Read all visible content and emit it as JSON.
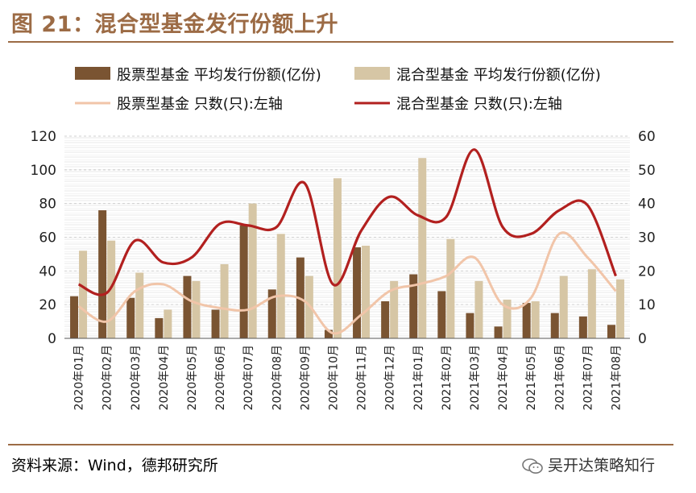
{
  "title": "图 21：混合型基金发行份额上升",
  "source": "资料来源：Wind，德邦研究所",
  "brand": "吴开达策略知行",
  "colors": {
    "stock_bar": "#7a5432",
    "mixed_bar": "#d6c6a5",
    "stock_line": "#f1c5a9",
    "mixed_line": "#b2201f",
    "accent": "#9c6b45"
  },
  "chart_data": {
    "type": "bar+line",
    "grid": true,
    "legend_position": "top",
    "categories": [
      "2020年01月",
      "2020年02月",
      "2020年03月",
      "2020年04月",
      "2020年05月",
      "2020年06月",
      "2020年07月",
      "2020年08月",
      "2020年09月",
      "2020年10月",
      "2020年11月",
      "2020年12月",
      "2021年01月",
      "2021年02月",
      "2021年03月",
      "2021年04月",
      "2021年05月",
      "2021年06月",
      "2021年07月",
      "2021年08月"
    ],
    "y_left": {
      "min": 0,
      "max": 120,
      "ticks": [
        0,
        20,
        40,
        60,
        80,
        100,
        120
      ]
    },
    "y_right": {
      "min": 0,
      "max": 60,
      "ticks": [
        0,
        10,
        20,
        30,
        40,
        50,
        60
      ]
    },
    "series": [
      {
        "name": "股票型基金 平均发行份额(亿份)",
        "type": "bar",
        "axis": "left",
        "values": [
          25,
          76,
          24,
          12,
          37,
          17,
          67,
          29,
          48,
          5,
          54,
          22,
          38,
          28,
          15,
          7,
          21,
          15,
          13,
          8
        ]
      },
      {
        "name": "混合型基金 平均发行份额(亿份)",
        "type": "bar",
        "axis": "left",
        "values": [
          52,
          58,
          39,
          17,
          34,
          44,
          80,
          62,
          37,
          95,
          55,
          34,
          107,
          59,
          34,
          23,
          22,
          37,
          41,
          35
        ]
      },
      {
        "name": "股票型基金 只数(只):左轴",
        "type": "line",
        "axis": "right",
        "values": [
          9.5,
          5,
          14,
          16,
          11,
          9,
          8.5,
          12.5,
          11,
          1.5,
          7,
          14,
          16,
          18.5,
          24,
          10,
          12,
          31,
          24,
          14
        ]
      },
      {
        "name": "混合型基金 只数(只):左轴",
        "type": "line",
        "axis": "right",
        "values": [
          16,
          13.5,
          29,
          22.5,
          24,
          34,
          33.5,
          33,
          46,
          16,
          32,
          42,
          36.5,
          36,
          56,
          33,
          31,
          38,
          39.5,
          18.5
        ]
      }
    ]
  }
}
